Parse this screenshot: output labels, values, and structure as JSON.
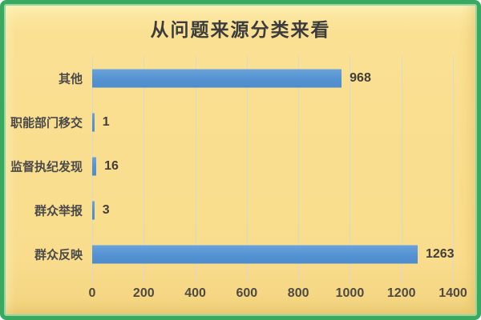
{
  "title": "从问题来源分类来看",
  "colors": {
    "frame_border": "#38a95f",
    "background": "#f9dd8d",
    "bar": "#5592d2",
    "gridline": "#ddd8cb",
    "title_text": "#3c3c3c",
    "label_text": "#4a4a4a"
  },
  "chart_data": {
    "type": "bar",
    "orientation": "horizontal",
    "title": "从问题来源分类来看",
    "categories": [
      "其他",
      "职能部门移交",
      "监督执纪发现",
      "群众举报",
      "群众反映"
    ],
    "values": [
      968,
      1,
      16,
      3,
      1263
    ],
    "data_labels": [
      "968",
      "1",
      "16",
      "3",
      "1263"
    ],
    "xlabel": "",
    "ylabel": "",
    "xlim": [
      0,
      1400
    ],
    "x_ticks": [
      0,
      200,
      400,
      600,
      800,
      1000,
      1200,
      1400
    ],
    "grid": true,
    "legend": false
  }
}
